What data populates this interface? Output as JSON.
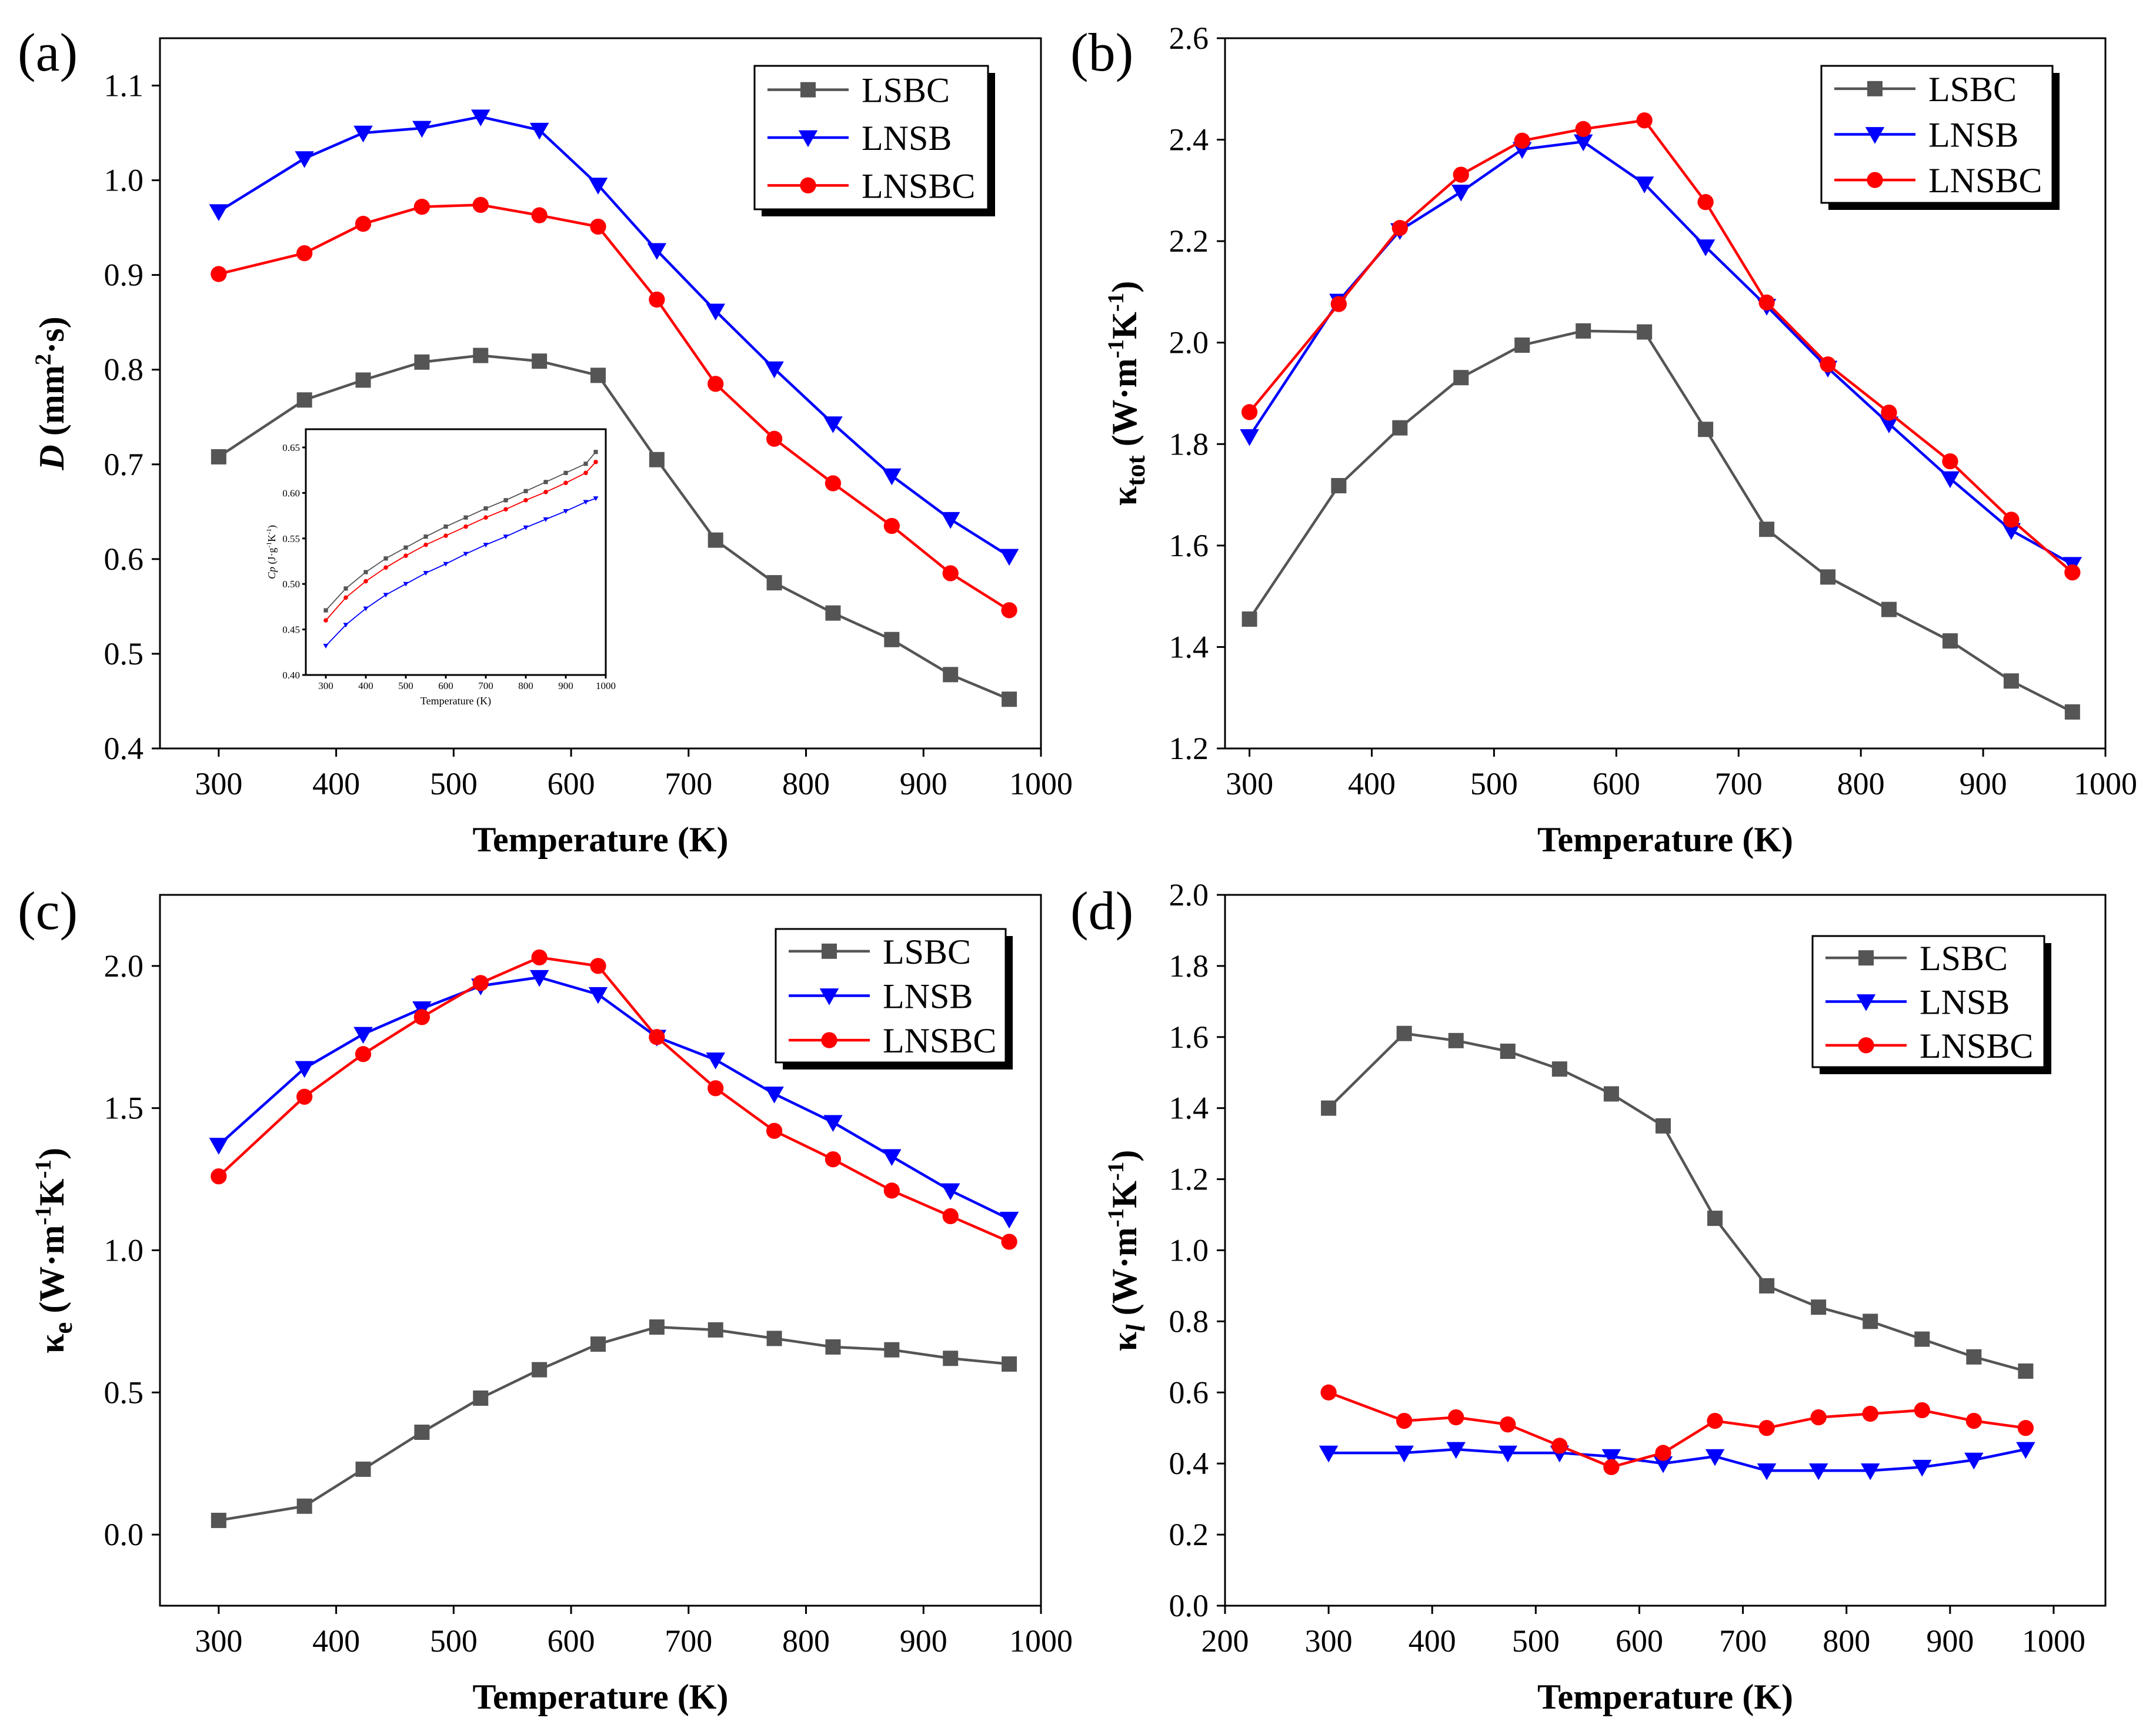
{
  "colors": {
    "LSBC": "#555555",
    "LNSB": "#0000ff",
    "LNSBC": "#ff0000"
  },
  "chart_data": [
    {
      "panel": "(a)",
      "type": "line",
      "xlabel": "Temperature (K)",
      "ylabel": "D (mm2·s)",
      "ylabel_parts": {
        "main": "D",
        "unit_pre": " (mm",
        "sup": "2",
        "unit_post": "·s)"
      },
      "xlim": [
        250,
        1000
      ],
      "ylim": [
        0.4,
        1.15
      ],
      "xticks": [
        300,
        400,
        500,
        600,
        700,
        800,
        900,
        1000
      ],
      "yticks": [
        0.4,
        0.5,
        0.6,
        0.7,
        0.8,
        0.9,
        1.0,
        1.1
      ],
      "ytick_labels": [
        "0.4",
        "0.5",
        "0.6",
        "0.7",
        "0.8",
        "0.9",
        "1.0",
        "1.1"
      ],
      "legend": "top-right",
      "x": [
        300,
        373,
        423,
        473,
        523,
        573,
        623,
        673,
        723,
        773,
        823,
        873,
        923,
        973
      ],
      "series": [
        {
          "name": "LSBC",
          "marker": "square",
          "values": [
            0.708,
            0.768,
            0.789,
            0.808,
            0.815,
            0.809,
            0.794,
            0.705,
            0.62,
            0.575,
            0.543,
            0.515,
            0.478,
            0.452
          ]
        },
        {
          "name": "LNSB",
          "marker": "triangle-down",
          "values": [
            0.967,
            1.023,
            1.05,
            1.055,
            1.067,
            1.053,
            0.995,
            0.926,
            0.862,
            0.801,
            0.743,
            0.688,
            0.642,
            0.603
          ]
        },
        {
          "name": "LNSBC",
          "marker": "circle",
          "values": [
            0.901,
            0.923,
            0.954,
            0.972,
            0.974,
            0.963,
            0.951,
            0.874,
            0.785,
            0.727,
            0.68,
            0.635,
            0.585,
            0.546
          ]
        }
      ],
      "inset": {
        "type": "line",
        "xlabel": "Temperature (K)",
        "ylabel": "Cp (J·g-1K-1)",
        "ylabel_parts": {
          "main": "Cp",
          "unit": " (J·g",
          "sup1": "-1",
          "mid": "K",
          "sup2": "-1",
          "end": ")"
        },
        "xlim": [
          250,
          1000
        ],
        "ylim": [
          0.4,
          0.67
        ],
        "xticks": [
          300,
          400,
          500,
          600,
          700,
          800,
          900,
          1000
        ],
        "yticks": [
          0.4,
          0.45,
          0.5,
          0.55,
          0.6,
          0.65
        ],
        "ytick_labels": [
          "0.40",
          "0.45",
          "0.50",
          "0.55",
          "0.60",
          "0.65"
        ],
        "x": [
          300,
          350,
          400,
          450,
          500,
          550,
          600,
          650,
          700,
          750,
          800,
          850,
          900,
          950,
          975
        ],
        "series": [
          {
            "name": "LSBC",
            "marker": "square",
            "values": [
              0.471,
              0.495,
              0.513,
              0.528,
              0.54,
              0.552,
              0.563,
              0.573,
              0.583,
              0.592,
              0.602,
              0.612,
              0.622,
              0.632,
              0.645
            ]
          },
          {
            "name": "LNSBC",
            "marker": "circle",
            "values": [
              0.46,
              0.485,
              0.503,
              0.518,
              0.531,
              0.543,
              0.553,
              0.563,
              0.573,
              0.582,
              0.592,
              0.601,
              0.611,
              0.622,
              0.634
            ]
          },
          {
            "name": "LNSB",
            "marker": "triangle-down",
            "values": [
              0.432,
              0.455,
              0.473,
              0.488,
              0.5,
              0.512,
              0.522,
              0.533,
              0.543,
              0.552,
              0.562,
              0.571,
              0.58,
              0.59,
              0.594
            ]
          }
        ]
      }
    },
    {
      "panel": "(b)",
      "type": "line",
      "xlabel": "Temperature (K)",
      "ylabel": "κtot (W·m-1K-1)",
      "ylabel_parts": {
        "main": "κ",
        "sub": "tot",
        "unit": " (W·m",
        "sup1": "-1",
        "mid": "K",
        "sup2": "-1",
        "end": ")"
      },
      "xlim": [
        280,
        1000
      ],
      "ylim": [
        1.2,
        2.6
      ],
      "xticks": [
        300,
        400,
        500,
        600,
        700,
        800,
        900,
        1000
      ],
      "yticks": [
        1.2,
        1.4,
        1.6,
        1.8,
        2.0,
        2.2,
        2.4,
        2.6
      ],
      "ytick_labels": [
        "1.2",
        "1.4",
        "1.6",
        "1.8",
        "2.0",
        "2.2",
        "2.4",
        "2.6"
      ],
      "legend": "top-right",
      "x": [
        300,
        373,
        423,
        473,
        523,
        573,
        623,
        673,
        723,
        773,
        823,
        873,
        923,
        973
      ],
      "series": [
        {
          "name": "LSBC",
          "marker": "square",
          "values": [
            1.455,
            1.718,
            1.832,
            1.931,
            1.995,
            2.023,
            2.021,
            1.829,
            1.632,
            1.538,
            1.474,
            1.412,
            1.333,
            1.272
          ]
        },
        {
          "name": "LNSB",
          "marker": "triangle-down",
          "values": [
            1.815,
            2.082,
            2.221,
            2.297,
            2.381,
            2.396,
            2.313,
            2.189,
            2.072,
            1.95,
            1.84,
            1.732,
            1.63,
            1.563
          ]
        },
        {
          "name": "LNSBC",
          "marker": "circle",
          "values": [
            1.863,
            2.076,
            2.226,
            2.331,
            2.398,
            2.421,
            2.438,
            2.277,
            2.079,
            1.957,
            1.862,
            1.766,
            1.651,
            1.547
          ]
        }
      ]
    },
    {
      "panel": "(c)",
      "type": "line",
      "xlabel": "Temperature (K)",
      "ylabel": "κe (W·m-1K-1)",
      "ylabel_parts": {
        "main": "κ",
        "sub": "e",
        "unit": " (W·m",
        "sup1": "-1",
        "mid": "K",
        "sup2": "-1",
        "end": ")"
      },
      "xlim": [
        250,
        1000
      ],
      "ylim": [
        -0.25,
        2.25
      ],
      "xticks": [
        300,
        400,
        500,
        600,
        700,
        800,
        900,
        1000
      ],
      "yticks": [
        0.0,
        0.5,
        1.0,
        1.5,
        2.0
      ],
      "ytick_labels": [
        "0.0",
        "0.5",
        "1.0",
        "1.5",
        "2.0"
      ],
      "legend": "top-right",
      "x": [
        300,
        373,
        423,
        473,
        523,
        573,
        623,
        673,
        723,
        773,
        823,
        873,
        923,
        973
      ],
      "series": [
        {
          "name": "LSBC",
          "marker": "square",
          "values": [
            0.05,
            0.1,
            0.23,
            0.36,
            0.48,
            0.58,
            0.67,
            0.73,
            0.72,
            0.69,
            0.66,
            0.65,
            0.62,
            0.6
          ]
        },
        {
          "name": "LNSB",
          "marker": "triangle-down",
          "values": [
            1.37,
            1.64,
            1.76,
            1.85,
            1.93,
            1.96,
            1.9,
            1.75,
            1.67,
            1.55,
            1.45,
            1.33,
            1.21,
            1.11
          ]
        },
        {
          "name": "LNSBC",
          "marker": "circle",
          "values": [
            1.26,
            1.54,
            1.69,
            1.82,
            1.94,
            2.03,
            2.0,
            1.75,
            1.57,
            1.42,
            1.32,
            1.21,
            1.12,
            1.03
          ]
        }
      ]
    },
    {
      "panel": "(d)",
      "type": "line",
      "xlabel": "Temperature (K)",
      "ylabel": "κl (W·m-1K-1)",
      "ylabel_parts": {
        "main": "κ",
        "sub": "l",
        "unit": " (W·m",
        "sup1": "-1",
        "mid": "K",
        "sup2": "-1",
        "end": ")"
      },
      "xlim": [
        200,
        1050
      ],
      "ylim": [
        0.0,
        2.0
      ],
      "xticks": [
        200,
        300,
        400,
        500,
        600,
        700,
        800,
        900,
        1000
      ],
      "yticks": [
        0.0,
        0.2,
        0.4,
        0.6,
        0.8,
        1.0,
        1.2,
        1.4,
        1.6,
        1.8,
        2.0
      ],
      "ytick_labels": [
        "0.0",
        "0.2",
        "0.4",
        "0.6",
        "0.8",
        "1.0",
        "1.2",
        "1.4",
        "1.6",
        "1.8",
        "2.0"
      ],
      "legend": "top-right",
      "x": [
        300,
        373,
        423,
        473,
        523,
        573,
        623,
        673,
        723,
        773,
        823,
        873,
        923,
        973
      ],
      "series": [
        {
          "name": "LSBC",
          "marker": "square",
          "values": [
            1.4,
            1.61,
            1.59,
            1.56,
            1.51,
            1.44,
            1.35,
            1.09,
            0.9,
            0.84,
            0.8,
            0.75,
            0.7,
            0.66
          ]
        },
        {
          "name": "LNSB",
          "marker": "triangle-down",
          "values": [
            0.43,
            0.43,
            0.44,
            0.43,
            0.43,
            0.42,
            0.4,
            0.42,
            0.38,
            0.38,
            0.38,
            0.39,
            0.41,
            0.44
          ]
        },
        {
          "name": "LNSBC",
          "marker": "circle",
          "values": [
            0.6,
            0.52,
            0.53,
            0.51,
            0.45,
            0.39,
            0.43,
            0.52,
            0.5,
            0.53,
            0.54,
            0.55,
            0.52,
            0.5
          ]
        }
      ]
    }
  ]
}
